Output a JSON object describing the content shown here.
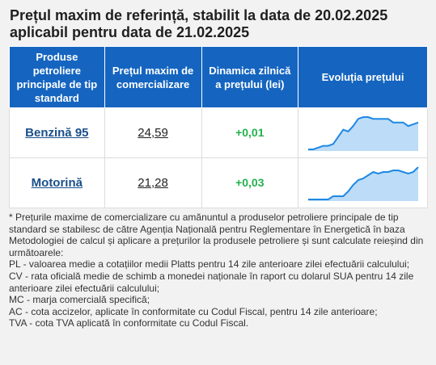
{
  "title": "Prețul maxim de referință, stabilit la data de 20.02.2025 aplicabil pentru data de 21.02.2025",
  "table": {
    "headers": [
      "Produse petroliere principale de tip standard",
      "Prețul maxim de comercializare",
      "Dinamica zilnică a prețului (lei)",
      "Evoluția prețului"
    ],
    "rows": [
      {
        "product": "Benzină 95",
        "price": "24,59",
        "delta": "+0,01",
        "trend": [
          3,
          3,
          4,
          5,
          5,
          6,
          10,
          14,
          13,
          16,
          20,
          21,
          21,
          20,
          20,
          20,
          20,
          18,
          18,
          18,
          16,
          17,
          18
        ]
      },
      {
        "product": "Motorină",
        "price": "21,28",
        "delta": "+0,03",
        "trend": [
          4,
          4,
          4,
          4,
          4,
          6,
          6,
          6,
          9,
          13,
          16,
          17,
          19,
          21,
          20,
          21,
          21,
          22,
          22,
          21,
          20,
          21,
          24
        ]
      }
    ]
  },
  "colors": {
    "header_bg": "#1565c0",
    "link": "#1a4f8b",
    "delta_positive": "#22b14c",
    "spark_line": "#1e88e5",
    "spark_fill": "#bcdcf7"
  },
  "notes": [
    "* Prețurile maxime de comercializare cu amănuntul a produselor petroliere principale de tip standard se stabilesc de către Agenția Națională pentru Reglementare în Energetică în baza Metodologiei de calcul și aplicare a prețurilor la produsele petroliere și sunt calculate reieșind din următoarele:",
    "PL - valoarea medie a cotațiilor medii Platts pentru 14 zile anterioare zilei efectuării calculului;",
    "CV - rata oficială medie de schimb a monedei naționale în raport cu dolarul SUA pentru 14 zile anterioare zilei efectuării calculului;",
    "MC - marja comercială specifică;",
    "AC - cota accizelor, aplicate în conformitate cu Codul Fiscal, pentru 14 zile anterioare;",
    "TVA - cota TVA aplicată în conformitate cu Codul Fiscal."
  ]
}
